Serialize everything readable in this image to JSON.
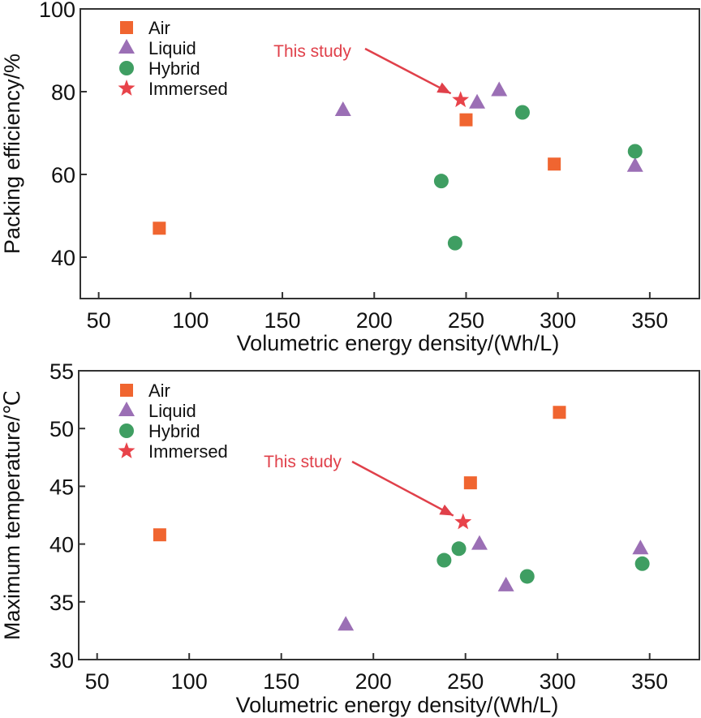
{
  "colors": {
    "Air": "#f06530",
    "Liquid": "#9b6fb5",
    "Hybrid": "#3f9e62",
    "Immersed": "#e8434a",
    "annotation": "#e0404a",
    "axis": "#333333"
  },
  "chart_data": [
    {
      "type": "scatter",
      "title": "",
      "xlabel": "Volumetric energy density/(Wh/L)",
      "ylabel": "Packing efficiency/%",
      "xlim": [
        40,
        377
      ],
      "ylim": [
        30,
        100
      ],
      "xticks": [
        50,
        100,
        150,
        200,
        250,
        300,
        350
      ],
      "yticks": [
        40,
        60,
        80,
        100
      ],
      "grid": false,
      "legend_position": "top-left",
      "annotation": {
        "text": "This study",
        "target": [
          247,
          78
        ]
      },
      "series": [
        {
          "name": "Air",
          "marker": "square",
          "points": [
            [
              83,
              47
            ],
            [
              250,
              73.2
            ],
            [
              298,
              62.5
            ]
          ]
        },
        {
          "name": "Liquid",
          "marker": "triangle",
          "points": [
            [
              183,
              75.5
            ],
            [
              256,
              77.3
            ],
            [
              268,
              80.3
            ],
            [
              342,
              62
            ]
          ]
        },
        {
          "name": "Hybrid",
          "marker": "circle",
          "points": [
            [
              236.5,
              58.4
            ],
            [
              244,
              43.4
            ],
            [
              280.7,
              75
            ],
            [
              342,
              65.6
            ]
          ]
        },
        {
          "name": "Immersed",
          "marker": "star",
          "points": [
            [
              247,
              78
            ]
          ]
        }
      ]
    },
    {
      "type": "scatter",
      "title": "",
      "xlabel": "Volumetric energy density/(Wh/L)",
      "ylabel": "Maximum temperature/℃",
      "xlim": [
        40,
        377
      ],
      "ylim": [
        30,
        55
      ],
      "xticks": [
        50,
        100,
        150,
        200,
        250,
        300,
        350
      ],
      "yticks": [
        30,
        35,
        40,
        45,
        50,
        55
      ],
      "grid": false,
      "legend_position": "top-left",
      "annotation": {
        "text": "This study",
        "target": [
          248.7,
          41.9
        ]
      },
      "series": [
        {
          "name": "Air",
          "marker": "square",
          "points": [
            [
              84,
              40.8
            ],
            [
              252.7,
              45.3
            ],
            [
              301,
              51.4
            ]
          ]
        },
        {
          "name": "Liquid",
          "marker": "triangle",
          "points": [
            [
              185,
              33
            ],
            [
              257.6,
              40
            ],
            [
              272,
              36.4
            ],
            [
              345,
              39.6
            ]
          ]
        },
        {
          "name": "Hybrid",
          "marker": "circle",
          "points": [
            [
              238.4,
              38.6
            ],
            [
              246.4,
              39.6
            ],
            [
              283.5,
              37.2
            ],
            [
              346,
              38.3
            ]
          ]
        },
        {
          "name": "Immersed",
          "marker": "star",
          "points": [
            [
              248.7,
              41.9
            ]
          ]
        }
      ]
    }
  ]
}
